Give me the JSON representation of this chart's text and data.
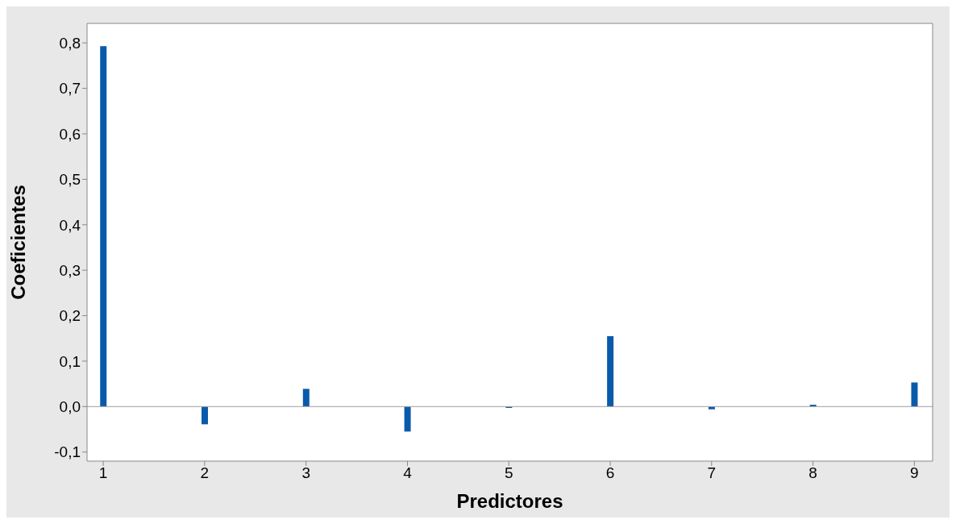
{
  "chart_data": {
    "type": "bar",
    "xlabel": "Predictores",
    "ylabel": "Coeficientes",
    "x": [
      1,
      2,
      3,
      4,
      5,
      6,
      7,
      8,
      9
    ],
    "values": [
      0.793,
      -0.039,
      0.039,
      -0.055,
      -0.003,
      0.155,
      -0.006,
      0.004,
      0.053
    ],
    "color": "#0a5aab",
    "xlim": [
      0.84,
      9.18
    ],
    "xticks": [
      1,
      2,
      3,
      4,
      5,
      6,
      7,
      8,
      9
    ],
    "ylim": [
      -0.12,
      0.843
    ],
    "yticks": [
      {
        "value": -0.1,
        "label": "-0,1"
      },
      {
        "value": 0,
        "label": "0,0"
      },
      {
        "value": 0.1,
        "label": "0,1"
      },
      {
        "value": 0.2,
        "label": "0,2"
      },
      {
        "value": 0.3,
        "label": "0,3"
      },
      {
        "value": 0.4,
        "label": "0,4"
      },
      {
        "value": 0.5,
        "label": "0,5"
      },
      {
        "value": 0.6,
        "label": "0,6"
      },
      {
        "value": 0.7,
        "label": "0,7"
      },
      {
        "value": 0.8,
        "label": "0,8"
      }
    ],
    "ref_lines": [
      {
        "axis": "y",
        "value": 0,
        "color": "#a0a0a0"
      }
    ],
    "grid": false
  }
}
